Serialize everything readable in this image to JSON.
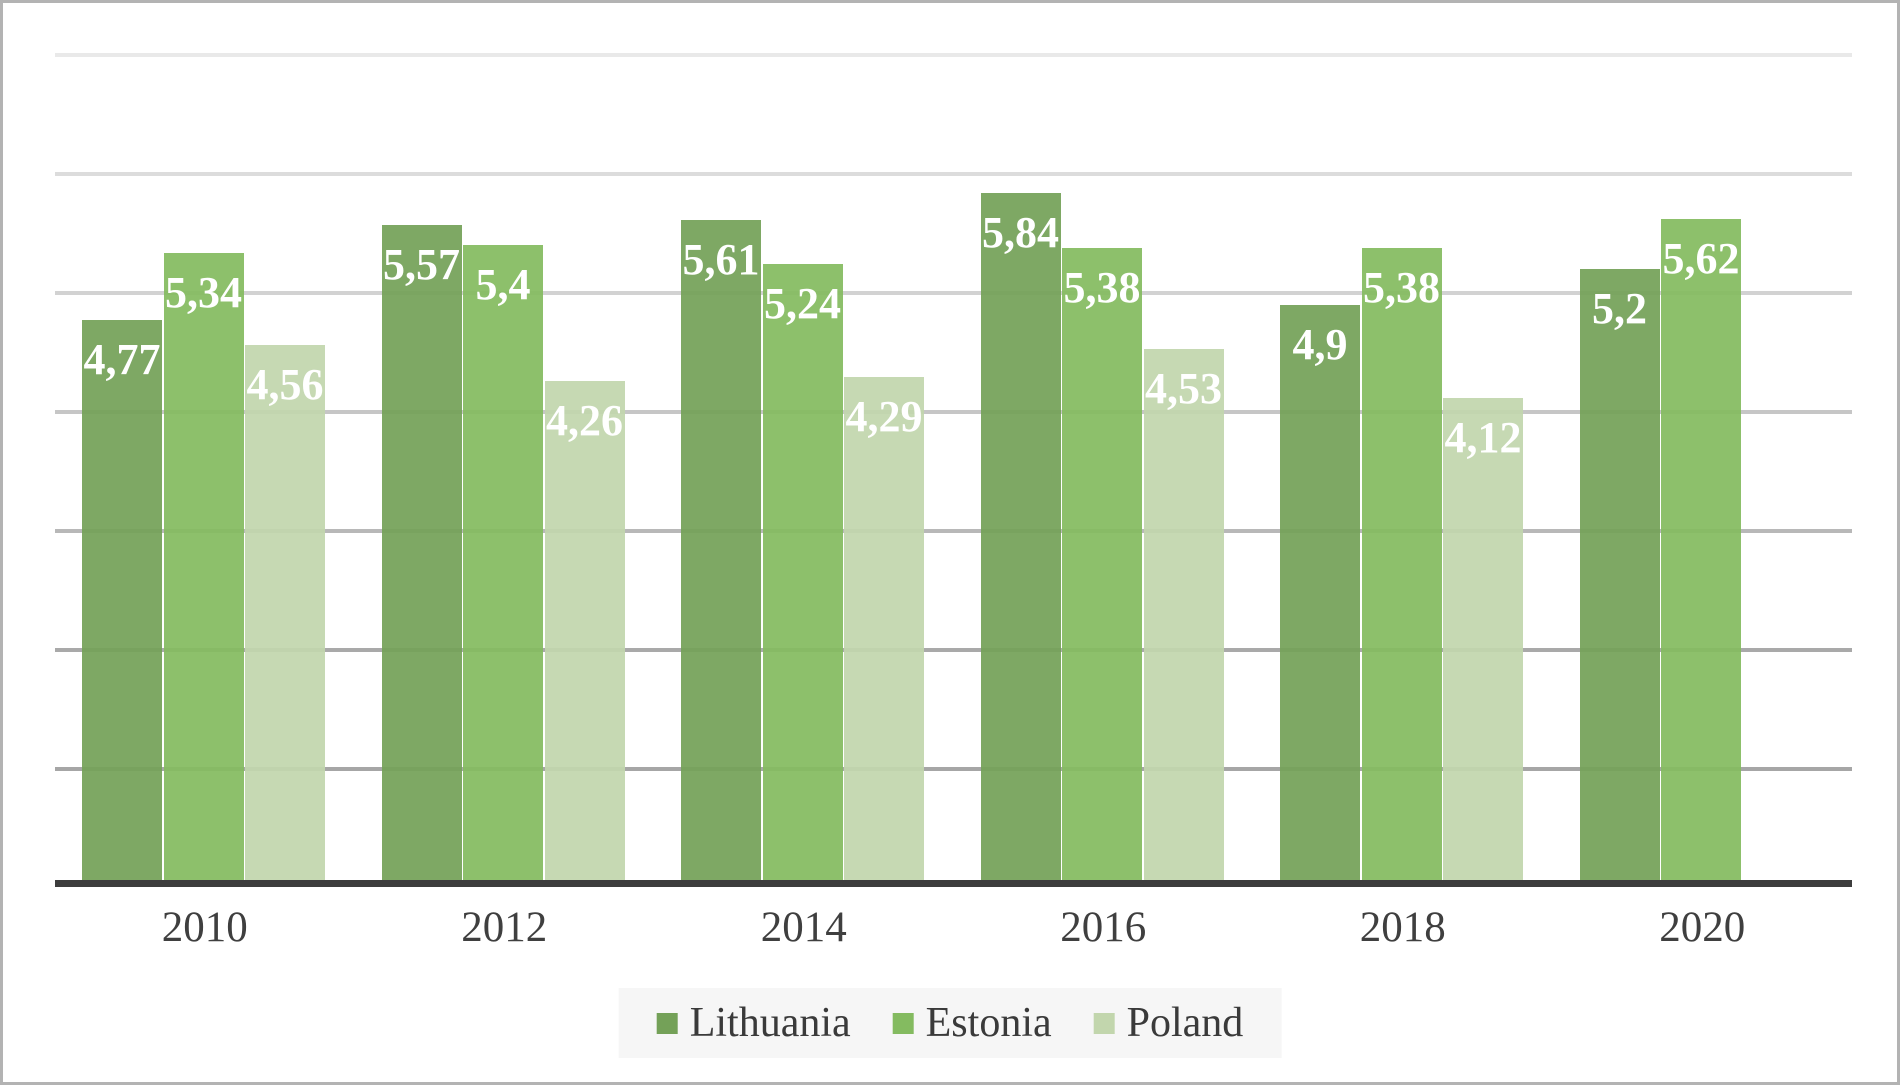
{
  "chart_data": {
    "type": "bar",
    "title": "",
    "xlabel": "",
    "ylabel": "",
    "categories": [
      "2010",
      "2012",
      "2014",
      "2016",
      "2018",
      "2020"
    ],
    "series": [
      {
        "name": "Lithuania",
        "color": "#74a158",
        "values": [
          4.77,
          5.57,
          5.61,
          5.84,
          4.9,
          5.2
        ],
        "labels": [
          "4,77",
          "5,57",
          "5,61",
          "5,84",
          "4,9",
          "5,2"
        ]
      },
      {
        "name": "Estonia",
        "color": "#84bb60",
        "values": [
          5.34,
          5.4,
          5.24,
          5.38,
          5.38,
          5.62
        ],
        "labels": [
          "5,34",
          "5,4",
          "5,24",
          "5,38",
          "5,38",
          "5,62"
        ]
      },
      {
        "name": "Poland",
        "color": "#c2d6ad",
        "values": [
          4.56,
          4.26,
          4.29,
          4.53,
          4.12,
          null
        ],
        "labels": [
          "4,56",
          "4,26",
          "4,29",
          "4,53",
          "4,12",
          null
        ]
      }
    ],
    "ylim": [
      0,
      7
    ],
    "grid": true,
    "gridline_values": [
      1,
      2,
      3,
      4,
      5,
      6,
      7
    ],
    "gridline_colors": [
      "#a6a6a6",
      "#a9a9a9",
      "#b8b8b8",
      "#c6c6c6",
      "#d2d2d2",
      "#dcdcdc",
      "#e9e9e9"
    ],
    "axis_color": "#3d3d3d",
    "bar_label_color": "#ffffff",
    "decimal_separator": ",",
    "legend_position": "bottom"
  },
  "legend": {
    "items": [
      {
        "label": "Lithuania",
        "color": "#74a158"
      },
      {
        "label": "Estonia",
        "color": "#84bb60"
      },
      {
        "label": "Poland",
        "color": "#c2d6ad"
      }
    ]
  }
}
